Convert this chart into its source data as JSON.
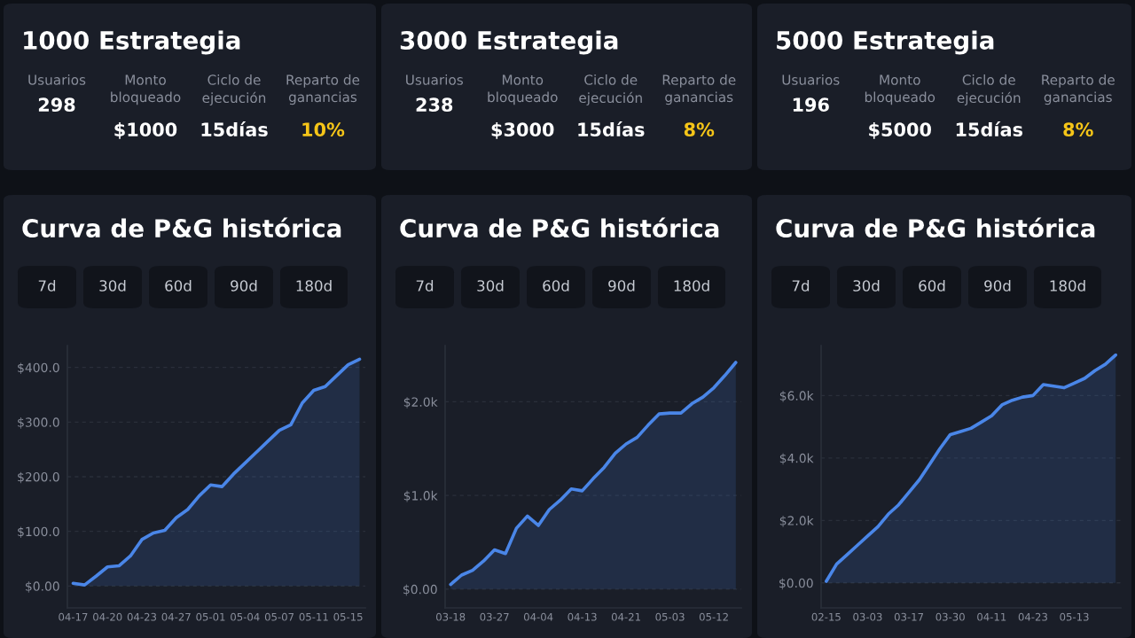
{
  "chart_data": [
    {
      "type": "other",
      "title": "1000 Estrategia",
      "annotations": [
        "Usuarios",
        "298",
        "Monto\nbloqueado",
        "$1000",
        "Ciclo de\nejecución",
        "15días",
        "Reparto de\nganancias",
        "10%"
      ]
    },
    {
      "type": "other",
      "title": "3000 Estrategia",
      "annotations": [
        "Usuarios",
        "238",
        "Monto\nbloqueado",
        "$3000",
        "Ciclo de\nejecución",
        "15días",
        "Reparto de\nganancias",
        "8%"
      ]
    },
    {
      "type": "other",
      "title": "5000 Estrategia",
      "annotations": [
        "Usuarios",
        "196",
        "Monto\nbloqueado",
        "$5000",
        "Ciclo de\nejecución",
        "15días",
        "Reparto de\nganancias",
        "8%"
      ]
    },
    {
      "type": "area",
      "title": "Curva de P&G histórica",
      "annotations": [
        "7d",
        "30d",
        "60d",
        "90d",
        "180d"
      ],
      "grid": "y",
      "legend": false,
      "categories": [
        "04-17",
        null,
        null,
        "04-20",
        null,
        null,
        "04-23",
        null,
        null,
        "04-27",
        null,
        null,
        "05-01",
        null,
        null,
        "05-04",
        null,
        null,
        "05-07",
        null,
        null,
        "05-11",
        null,
        null,
        "05-15",
        null
      ],
      "series": [
        {
          "color": "#4a86e8",
          "values": [
            5,
            2,
            18,
            35,
            37,
            55,
            85,
            97,
            102,
            125,
            140,
            165,
            185,
            182,
            205,
            225,
            245,
            265,
            285,
            295,
            335,
            358,
            365,
            385,
            405,
            415
          ]
        }
      ],
      "ylim": [
        -40,
        440
      ],
      "yticks": [
        {
          "value": 0,
          "label": "$0.00"
        },
        {
          "value": 100,
          "label": "$100.0"
        },
        {
          "value": 200,
          "label": "$200.0"
        },
        {
          "value": 300,
          "label": "$300.0"
        },
        {
          "value": 400,
          "label": "$400.0"
        }
      ]
    },
    {
      "type": "area",
      "title": "Curva de P&G histórica",
      "annotations": [
        "7d",
        "30d",
        "60d",
        "90d",
        "180d"
      ],
      "grid": "y",
      "legend": false,
      "categories": [
        "03-18",
        null,
        null,
        null,
        "03-27",
        null,
        null,
        null,
        "04-04",
        null,
        null,
        null,
        "04-13",
        null,
        null,
        null,
        "04-21",
        null,
        null,
        null,
        "05-03",
        null,
        null,
        null,
        "05-12",
        null,
        null
      ],
      "series": [
        {
          "color": "#4a86e8",
          "values": [
            50,
            150,
            200,
            300,
            420,
            380,
            650,
            780,
            680,
            850,
            950,
            1070,
            1050,
            1180,
            1300,
            1450,
            1550,
            1620,
            1750,
            1870,
            1880,
            1880,
            1980,
            2050,
            2150,
            2280,
            2420
          ]
        }
      ],
      "ylim": [
        -200,
        2600
      ],
      "yticks": [
        {
          "value": 0,
          "label": "$0.00"
        },
        {
          "value": 1000,
          "label": "$1.0k"
        },
        {
          "value": 2000,
          "label": "$2.0k"
        }
      ]
    },
    {
      "type": "area",
      "title": "Curva de P&G histórica",
      "annotations": [
        "7d",
        "30d",
        "60d",
        "90d",
        "180d"
      ],
      "grid": "y",
      "legend": false,
      "categories": [
        "02-15",
        null,
        null,
        null,
        "03-03",
        null,
        null,
        null,
        "03-17",
        null,
        null,
        null,
        "03-30",
        null,
        null,
        null,
        "04-11",
        null,
        null,
        null,
        "04-23",
        null,
        null,
        null,
        "05-13",
        null,
        null,
        null,
        null
      ],
      "series": [
        {
          "color": "#4a86e8",
          "values": [
            50,
            600,
            900,
            1200,
            1500,
            1800,
            2200,
            2500,
            2900,
            3300,
            3800,
            4300,
            4750,
            4850,
            4950,
            5150,
            5350,
            5700,
            5850,
            5950,
            6000,
            6350,
            6300,
            6250,
            6400,
            6550,
            6800,
            7000,
            7300
          ]
        }
      ],
      "ylim": [
        -800,
        7600
      ],
      "yticks": [
        {
          "value": 0,
          "label": "$0.00"
        },
        {
          "value": 2000,
          "label": "$2.0k"
        },
        {
          "value": 4000,
          "label": "$4.0k"
        },
        {
          "value": 6000,
          "label": "$6.0k"
        }
      ]
    }
  ]
}
